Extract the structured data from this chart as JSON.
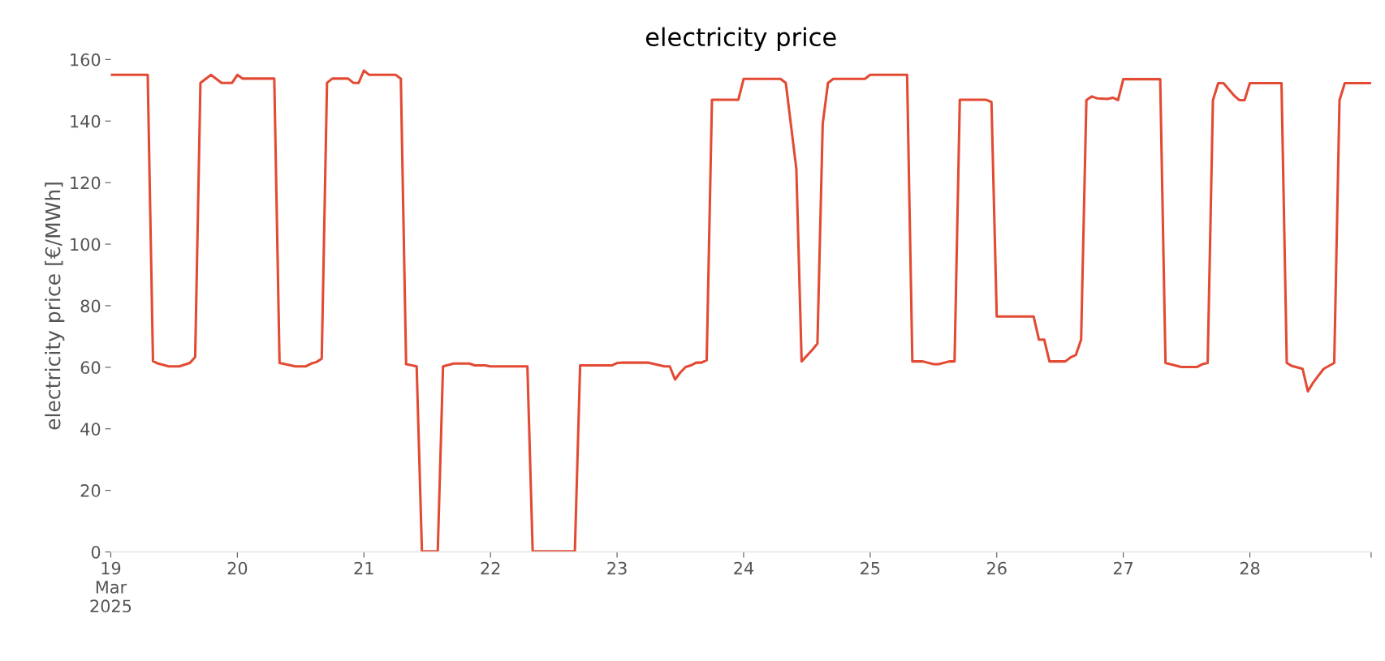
{
  "chart_data": {
    "type": "line",
    "title": "electricity price",
    "ylabel": "electricity price [€/MWh]",
    "x": [
      "2025-03-19T00:00",
      "2025-03-19T07:00",
      "2025-03-19T08:00",
      "2025-03-19T09:00",
      "2025-03-19T11:00",
      "2025-03-19T13:00",
      "2025-03-19T15:00",
      "2025-03-19T16:00",
      "2025-03-19T17:00",
      "2025-03-19T19:00",
      "2025-03-19T21:00",
      "2025-03-19T23:00",
      "2025-03-20T00:00",
      "2025-03-20T01:00",
      "2025-03-20T07:00",
      "2025-03-20T08:00",
      "2025-03-20T11:00",
      "2025-03-20T13:00",
      "2025-03-20T14:00",
      "2025-03-20T15:00",
      "2025-03-20T16:00",
      "2025-03-20T17:00",
      "2025-03-20T18:00",
      "2025-03-20T21:00",
      "2025-03-20T22:00",
      "2025-03-20T23:00",
      "2025-03-21T00:00",
      "2025-03-21T01:00",
      "2025-03-21T06:00",
      "2025-03-21T07:00",
      "2025-03-21T08:00",
      "2025-03-21T10:00",
      "2025-03-21T11:00",
      "2025-03-21T14:00",
      "2025-03-21T15:00",
      "2025-03-21T17:00",
      "2025-03-21T20:00",
      "2025-03-21T21:00",
      "2025-03-21T23:00",
      "2025-03-22T00:00",
      "2025-03-22T07:00",
      "2025-03-22T08:00",
      "2025-03-22T16:00",
      "2025-03-22T17:00",
      "2025-03-22T23:00",
      "2025-03-23T00:00",
      "2025-03-23T01:00",
      "2025-03-23T06:00",
      "2025-03-23T09:00",
      "2025-03-23T10:00",
      "2025-03-23T11:00",
      "2025-03-23T12:00",
      "2025-03-23T13:00",
      "2025-03-23T14:00",
      "2025-03-23T15:00",
      "2025-03-23T16:00",
      "2025-03-23T17:00",
      "2025-03-23T18:00",
      "2025-03-23T23:00",
      "2025-03-24T00:00",
      "2025-03-24T07:00",
      "2025-03-24T08:00",
      "2025-03-24T10:00",
      "2025-03-24T11:00",
      "2025-03-24T13:00",
      "2025-03-24T14:00",
      "2025-03-24T15:00",
      "2025-03-24T16:00",
      "2025-03-24T17:00",
      "2025-03-24T23:00",
      "2025-03-25T00:00",
      "2025-03-25T07:00",
      "2025-03-25T08:00",
      "2025-03-25T10:00",
      "2025-03-25T12:00",
      "2025-03-25T13:00",
      "2025-03-25T15:00",
      "2025-03-25T16:00",
      "2025-03-25T17:00",
      "2025-03-25T22:00",
      "2025-03-25T23:00",
      "2025-03-26T00:00",
      "2025-03-26T07:00",
      "2025-03-26T08:00",
      "2025-03-26T09:00",
      "2025-03-26T10:00",
      "2025-03-26T13:00",
      "2025-03-26T14:00",
      "2025-03-26T15:00",
      "2025-03-26T16:00",
      "2025-03-26T17:00",
      "2025-03-26T18:00",
      "2025-03-26T19:00",
      "2025-03-26T21:00",
      "2025-03-26T22:00",
      "2025-03-26T23:00",
      "2025-03-27T00:00",
      "2025-03-27T07:00",
      "2025-03-27T08:00",
      "2025-03-27T11:00",
      "2025-03-27T14:00",
      "2025-03-27T15:00",
      "2025-03-27T16:00",
      "2025-03-27T17:00",
      "2025-03-27T18:00",
      "2025-03-27T19:00",
      "2025-03-27T21:00",
      "2025-03-27T22:00",
      "2025-03-27T23:00",
      "2025-03-28T00:00",
      "2025-03-28T06:00",
      "2025-03-28T07:00",
      "2025-03-28T08:00",
      "2025-03-28T10:00",
      "2025-03-28T11:00",
      "2025-03-28T12:00",
      "2025-03-28T13:00",
      "2025-03-28T14:00",
      "2025-03-28T16:00",
      "2025-03-28T17:00",
      "2025-03-28T18:00",
      "2025-03-28T23:00"
    ],
    "series": [
      {
        "color": "#e24a33",
        "values": [
          155,
          155,
          62,
          61.2,
          60.3,
          60.3,
          61.4,
          63.3,
          152.4,
          155,
          152.4,
          152.4,
          155,
          153.8,
          153.8,
          61.4,
          60.3,
          60.3,
          61.2,
          61.7,
          62.8,
          152.4,
          153.8,
          153.8,
          152.4,
          152.4,
          156.4,
          155,
          155,
          153.8,
          61,
          60.3,
          0.2,
          0.2,
          60.3,
          61.2,
          61.2,
          60.6,
          60.6,
          60.3,
          60.3,
          0.2,
          0.2,
          60.6,
          60.6,
          61.4,
          61.5,
          61.5,
          60.3,
          60.3,
          56,
          58.3,
          60.1,
          60.6,
          61.5,
          61.5,
          62.3,
          146.9,
          146.9,
          153.7,
          153.7,
          152.4,
          124.5,
          61.9,
          65.6,
          67.7,
          139.1,
          152.4,
          153.7,
          153.7,
          155,
          155,
          61.9,
          61.9,
          61,
          61,
          61.9,
          61.9,
          146.9,
          146.9,
          146.2,
          76.5,
          76.5,
          69,
          69,
          61.9,
          61.9,
          63.2,
          64,
          69,
          146.8,
          148,
          147.4,
          147.2,
          147.6,
          146.8,
          153.6,
          153.6,
          61.4,
          60.1,
          60.1,
          61,
          61.4,
          146.8,
          152.3,
          152.3,
          148.3,
          146.8,
          146.8,
          152.3,
          152.3,
          61.4,
          60.4,
          59.5,
          52.2,
          55,
          57.3,
          59.5,
          61.4,
          146.8,
          152.3,
          152.3
        ]
      }
    ],
    "xlim": [
      "2025-03-19T00:00",
      "2025-03-28T23:00"
    ],
    "xticks": [
      {
        "value": "2025-03-19",
        "label": "19\nMar\n2025"
      },
      {
        "value": "2025-03-20",
        "label": "20"
      },
      {
        "value": "2025-03-21",
        "label": "21"
      },
      {
        "value": "2025-03-22",
        "label": "22"
      },
      {
        "value": "2025-03-23",
        "label": "23"
      },
      {
        "value": "2025-03-24",
        "label": "24"
      },
      {
        "value": "2025-03-25",
        "label": "25"
      },
      {
        "value": "2025-03-26",
        "label": "26"
      },
      {
        "value": "2025-03-27",
        "label": "27"
      },
      {
        "value": "2025-03-28",
        "label": "28"
      },
      {
        "value": "2025-03-28T23:00",
        "label": null
      }
    ],
    "ylim": [
      0,
      160
    ],
    "yticks": [
      0,
      20,
      40,
      60,
      80,
      100,
      120,
      140,
      160
    ],
    "grid": false,
    "legend": false,
    "marker": "none",
    "line_style": "solid"
  }
}
